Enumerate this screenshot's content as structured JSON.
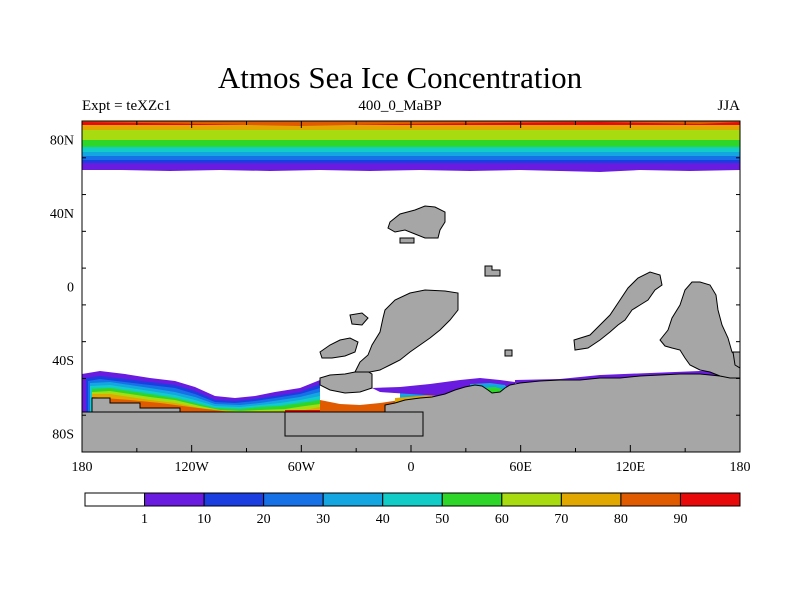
{
  "figure": {
    "title": "Atmos Sea Ice Concentration",
    "subtitle_left": "Expt = teXZc1",
    "subtitle_center": "400_0_MaBP",
    "subtitle_right": "JJA"
  },
  "map": {
    "projection": "cylindrical equidistant",
    "lon_range": [
      -180,
      180
    ],
    "lat_range": [
      -90,
      90
    ],
    "land_color": "#a6a6a6",
    "ocean_color": "#ffffff",
    "lon_ticks": [
      {
        "value": -180,
        "label": "180"
      },
      {
        "value": -120,
        "label": "120W"
      },
      {
        "value": -60,
        "label": "60W"
      },
      {
        "value": 0,
        "label": "0"
      },
      {
        "value": 60,
        "label": "60E"
      },
      {
        "value": 120,
        "label": "120E"
      },
      {
        "value": 180,
        "label": "180"
      }
    ],
    "lat_ticks": [
      {
        "value": 80,
        "label": "80N"
      },
      {
        "value": 40,
        "label": "40N"
      },
      {
        "value": 0,
        "label": "0"
      },
      {
        "value": -40,
        "label": "40S"
      },
      {
        "value": -80,
        "label": "80S"
      }
    ]
  },
  "colorbar": {
    "colors": [
      "#ffffff",
      "#6a1be0",
      "#1a3ee0",
      "#1670e6",
      "#13a6e0",
      "#12ccc8",
      "#2ed62a",
      "#a8dc10",
      "#e0a800",
      "#e05a00",
      "#e80a0a"
    ],
    "labels": [
      "1",
      "10",
      "20",
      "30",
      "40",
      "50",
      "60",
      "70",
      "80",
      "90"
    ]
  },
  "chart_data": {
    "type": "heatmap",
    "title": "Atmos Sea Ice Concentration",
    "variable": "sea ice concentration (%)",
    "experiment": "teXZc1",
    "period": "400_0_MaBP",
    "season": "JJA",
    "levels": [
      1,
      10,
      20,
      30,
      40,
      50,
      60,
      70,
      80,
      90
    ],
    "arctic_band": {
      "lat_edge_approx": 64,
      "profile": [
        {
          "lat": 90,
          "value": 85
        },
        {
          "lat": 86,
          "value": 70
        },
        {
          "lat": 80,
          "value": 60
        },
        {
          "lat": 76,
          "value": 45
        },
        {
          "lat": 72,
          "value": 30
        },
        {
          "lat": 69,
          "value": 15
        },
        {
          "lat": 65,
          "value": 5
        }
      ]
    },
    "antarctic_band": {
      "edge_lat_approx": -50,
      "max_value": 95
    }
  }
}
